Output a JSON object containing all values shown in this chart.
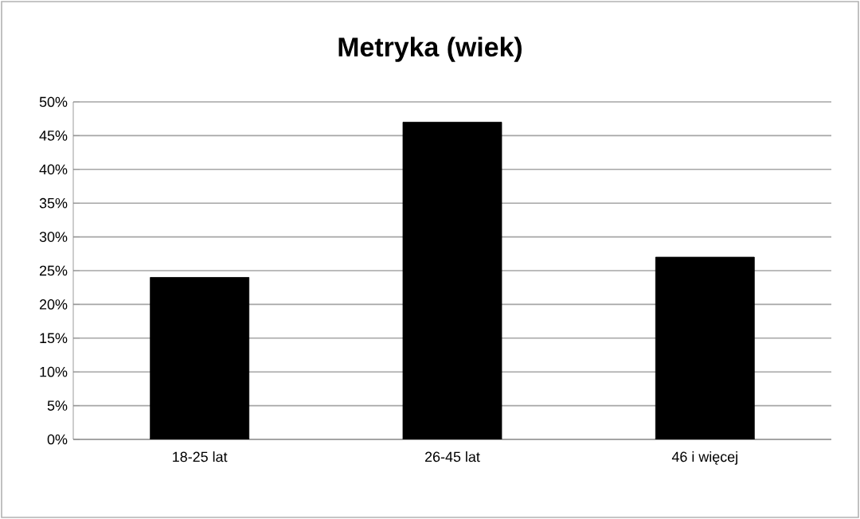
{
  "chart_data": {
    "type": "bar",
    "title": "Metryka (wiek)",
    "categories": [
      "18-25 lat",
      "26-45 lat",
      "46 i więcej"
    ],
    "values": [
      24,
      47,
      27
    ],
    "color": "#000000",
    "ylim": [
      0,
      50
    ],
    "yticks": [
      {
        "value": 0,
        "label": "0%"
      },
      {
        "value": 5,
        "label": "5%"
      },
      {
        "value": 10,
        "label": "10%"
      },
      {
        "value": 15,
        "label": "15%"
      },
      {
        "value": 20,
        "label": "20%"
      },
      {
        "value": 25,
        "label": "25%"
      },
      {
        "value": 30,
        "label": "30%"
      },
      {
        "value": 35,
        "label": "35%"
      },
      {
        "value": 40,
        "label": "40%"
      },
      {
        "value": 45,
        "label": "45%"
      },
      {
        "value": 50,
        "label": "50%"
      }
    ],
    "grid": "y",
    "legend": false
  }
}
